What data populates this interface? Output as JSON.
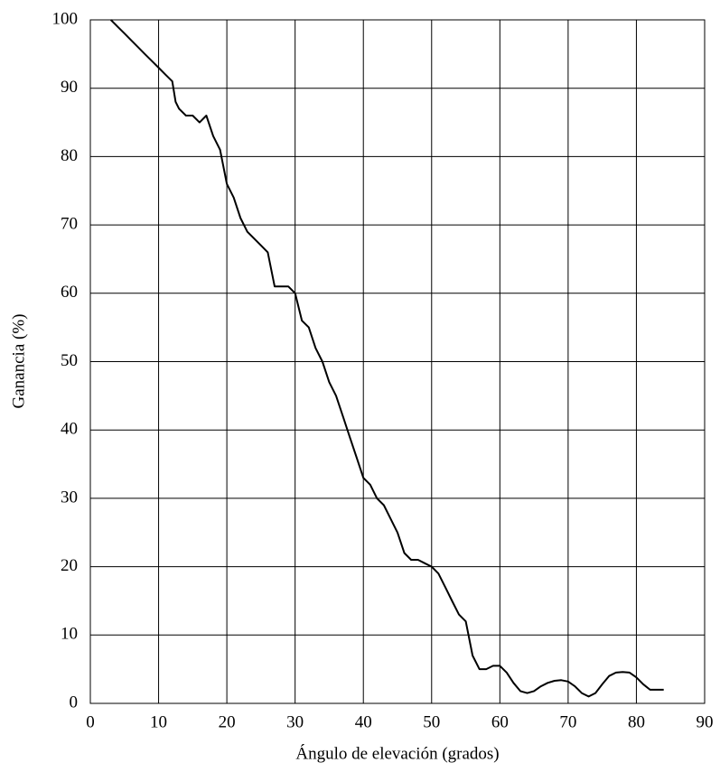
{
  "chart_data": {
    "type": "line",
    "xlabel": "Ángulo de elevación (grados)",
    "ylabel": "Ganancia (%)",
    "x": [
      3,
      4,
      5,
      6,
      7,
      8,
      9,
      10,
      11,
      12,
      12.5,
      13,
      14,
      15,
      16,
      17,
      18,
      19,
      20,
      21,
      22,
      23,
      24,
      25,
      26,
      27,
      28,
      29,
      30,
      31,
      32,
      33,
      34,
      35,
      36,
      37,
      38,
      39,
      40,
      41,
      42,
      43,
      44,
      45,
      46,
      47,
      48,
      49,
      50,
      51,
      52,
      53,
      54,
      55,
      56,
      57,
      58,
      59,
      60,
      61,
      62,
      63,
      64,
      65,
      66,
      67,
      68,
      69,
      70,
      71,
      72,
      73,
      74,
      75,
      76,
      77,
      78,
      79,
      80,
      81,
      82,
      84
    ],
    "values": [
      100,
      99,
      98,
      97,
      96,
      95,
      94,
      93,
      92,
      91,
      88,
      87,
      86,
      86,
      85,
      86,
      83,
      81,
      76,
      74,
      71,
      69,
      68,
      67,
      66,
      61,
      61,
      61,
      60,
      56,
      55,
      52,
      50,
      47,
      45,
      42,
      39,
      36,
      33,
      32,
      30,
      29,
      27,
      25,
      22,
      21,
      21,
      20.5,
      20,
      19,
      17,
      15,
      13,
      12,
      7,
      5,
      5,
      5.5,
      5.5,
      4.5,
      3,
      1.8,
      1.5,
      1.8,
      2.5,
      3,
      3.3,
      3.4,
      3.2,
      2.5,
      1.5,
      1,
      1.5,
      2.8,
      4,
      4.5,
      4.6,
      4.5,
      3.8,
      2.8,
      2,
      2
    ],
    "color": "#000000",
    "xlim": [
      0,
      90
    ],
    "xticks": [
      0,
      10,
      20,
      30,
      40,
      50,
      60,
      70,
      80,
      90
    ],
    "ylim": [
      0,
      100
    ],
    "yticks": [
      0,
      10,
      20,
      30,
      40,
      50,
      60,
      70,
      80,
      90,
      100
    ],
    "grid": true
  }
}
